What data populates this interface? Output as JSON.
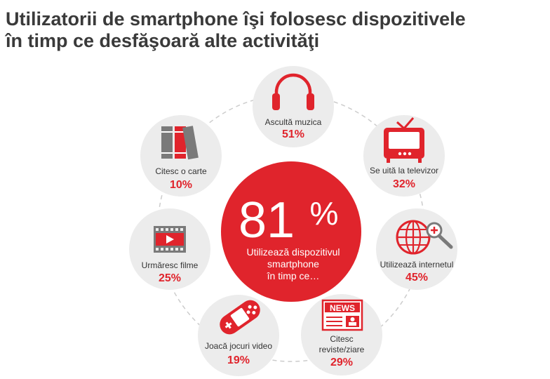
{
  "title": {
    "line1": "Utilizatorii de smartphone îşi folosesc dispozitivele",
    "line2": "în timp ce desfăşoară alte activităţi"
  },
  "center": {
    "number": "81",
    "percent": "%",
    "line1": "Utilizează dispozitivul",
    "line2": "smartphone",
    "line3": "în timp ce…"
  },
  "activities": {
    "music": {
      "label": "Ascultă muzica",
      "value": "51%",
      "icon": "headphones-icon"
    },
    "tv": {
      "label": "Se uită la televizor",
      "value": "32%",
      "icon": "tv-icon"
    },
    "internet": {
      "label": "Utilizează internetul",
      "value": "45%",
      "icon": "globe-search-icon"
    },
    "magazines": {
      "label1": "Citesc",
      "label2": "reviste/ziare",
      "value": "29%",
      "icon": "newspaper-icon",
      "badge": "NEWS"
    },
    "games": {
      "label": "Joacă jocuri video",
      "value": "19%",
      "icon": "gamepad-icon"
    },
    "movies": {
      "label": "Urmăresc filme",
      "value": "25%",
      "icon": "film-icon"
    },
    "books": {
      "label": "Citesc o carte",
      "value": "10%",
      "icon": "books-icon"
    }
  },
  "colors": {
    "accent": "#e0242c",
    "bubble": "#ececec",
    "icon_gray": "#7a7a7a",
    "title": "#3a3a3a"
  }
}
